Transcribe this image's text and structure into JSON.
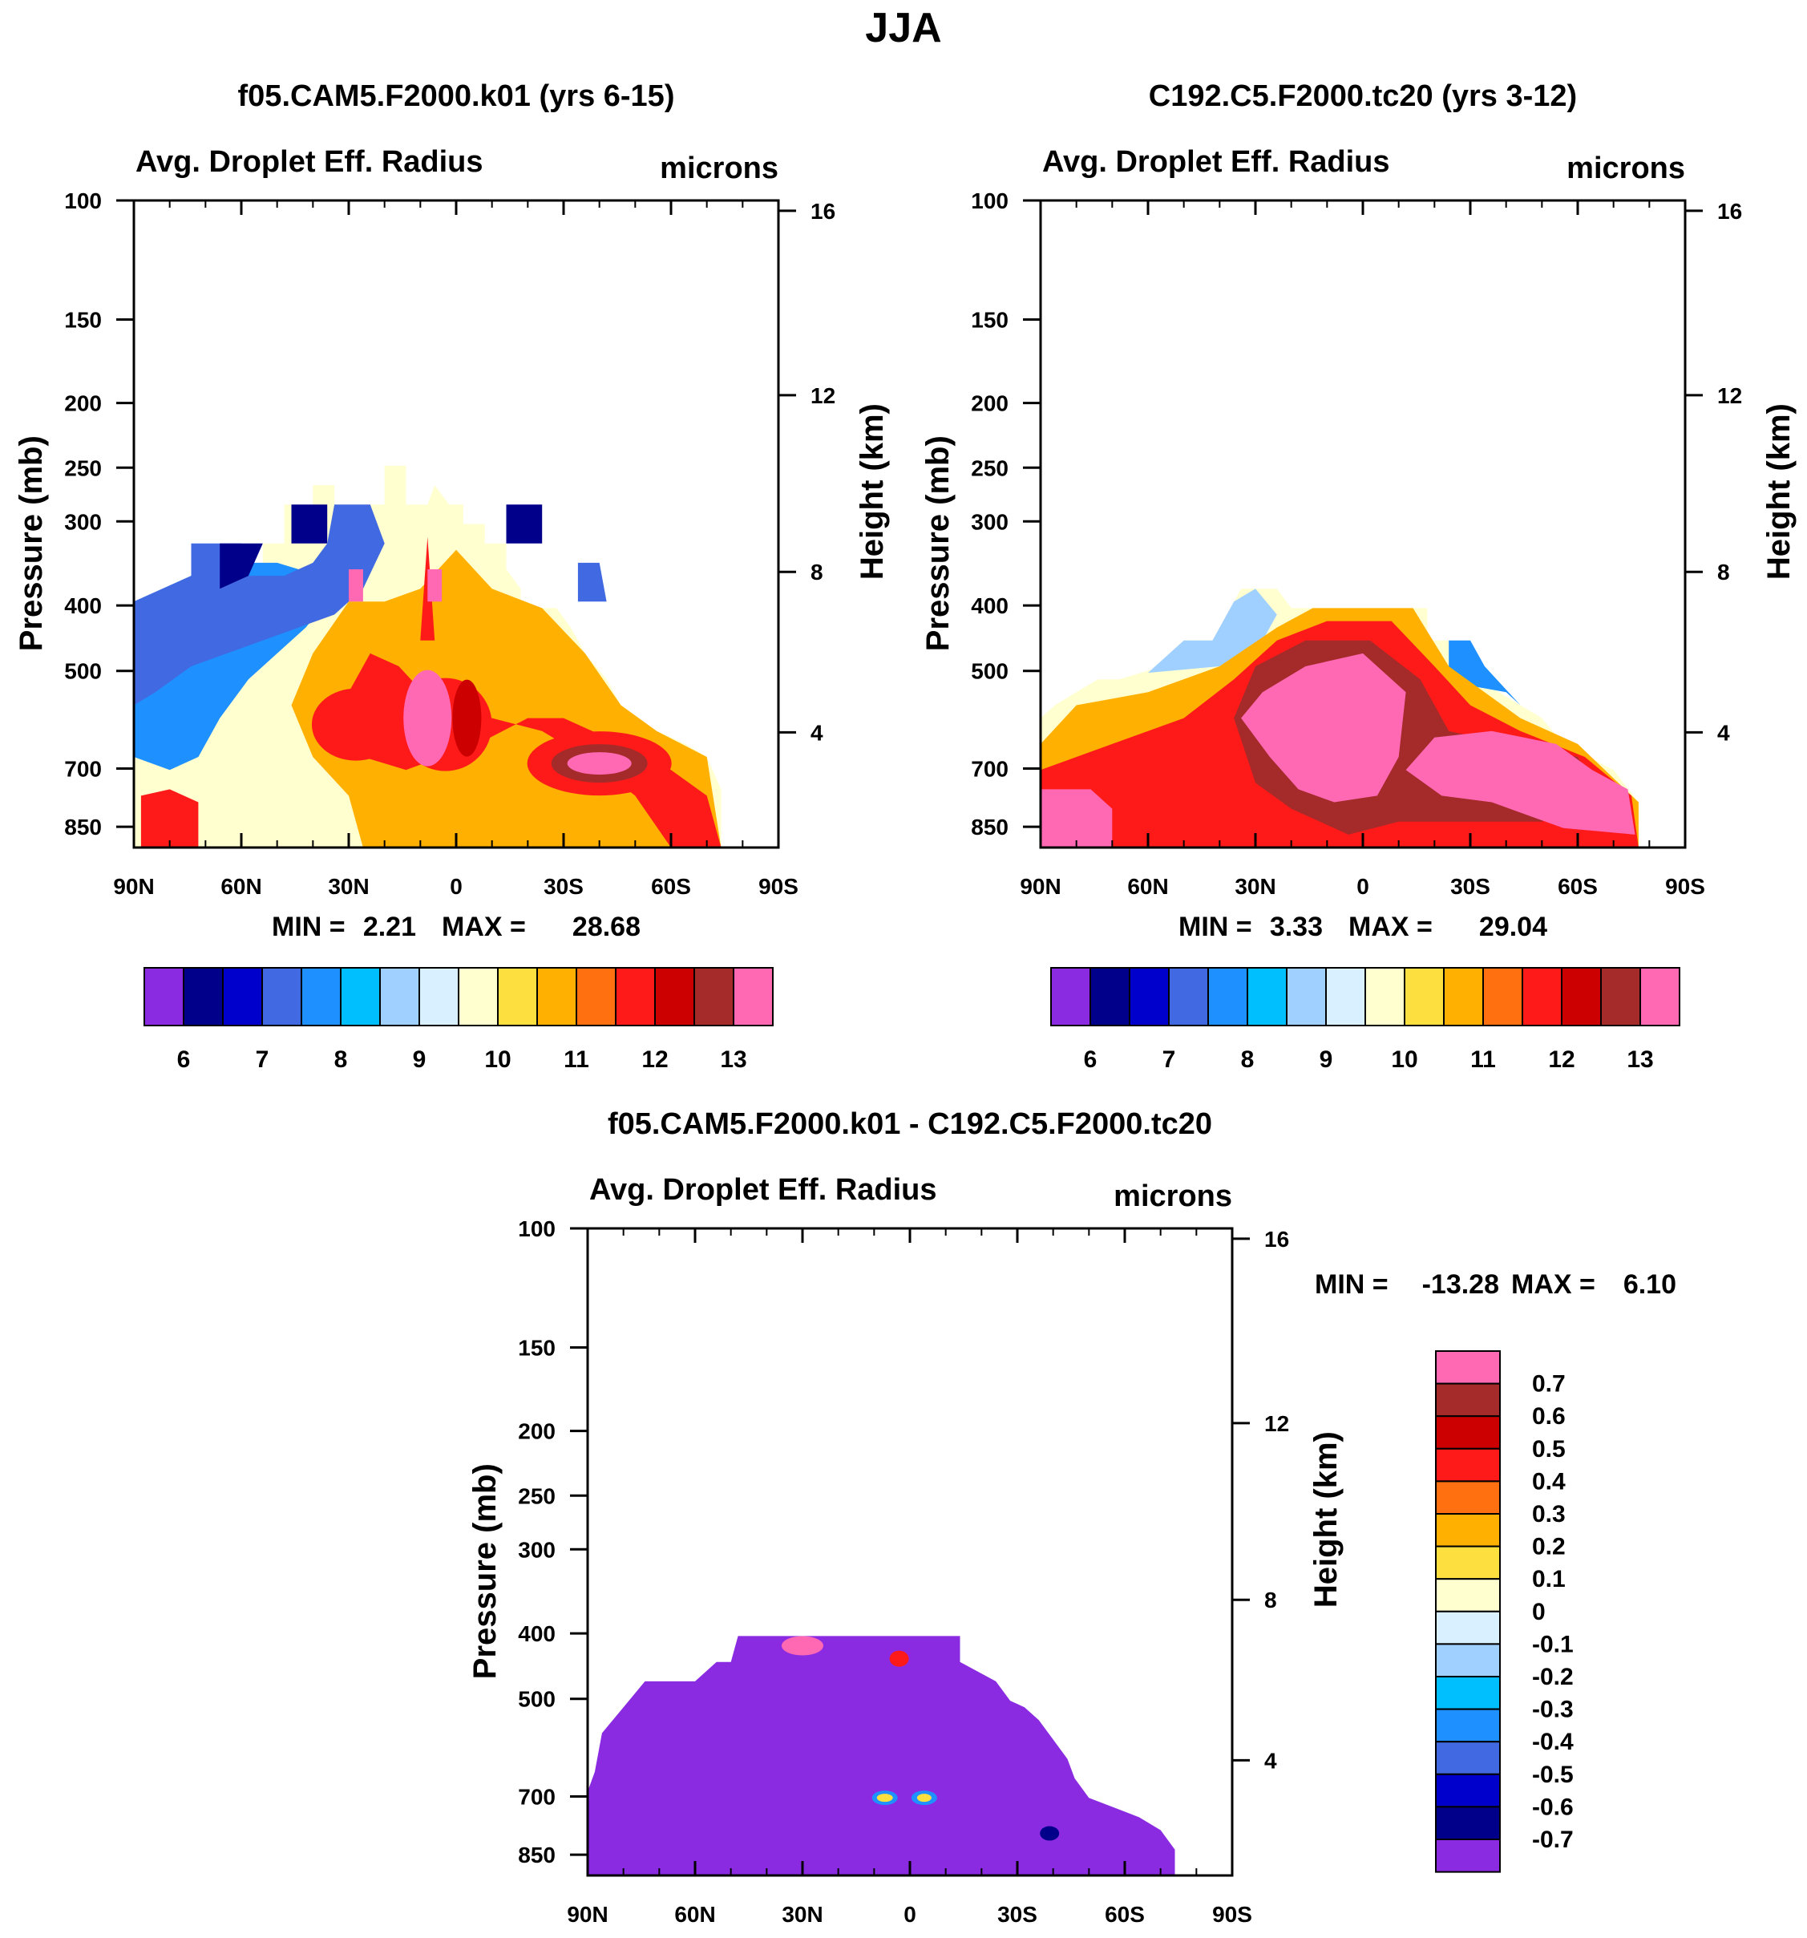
{
  "figure": {
    "title": "JJA"
  },
  "chart_data": [
    {
      "type": "heatmap",
      "title": "f05.CAM5.F2000.k01 (yrs 6-15)",
      "left_label": "Avg. Droplet Eff. Radius",
      "units_label": "microns",
      "xlabel": "",
      "ylabel": "Pressure (mb)",
      "y2label": "Height (km)",
      "x_ticks": [
        "90N",
        "60N",
        "30N",
        "0",
        "30S",
        "60S",
        "90S"
      ],
      "y_ticks": [
        "100",
        "150",
        "200",
        "250",
        "300",
        "400",
        "500",
        "700",
        "850"
      ],
      "y2_ticks": [
        "4",
        "8",
        "12",
        "16"
      ],
      "stats": {
        "min_label": "MIN =",
        "min": "2.21",
        "max_label": "MAX =",
        "max": "28.68"
      },
      "colorbar_labels": [
        "6",
        "7",
        "8",
        "9",
        "10",
        "11",
        "12",
        "13"
      ]
    },
    {
      "type": "heatmap",
      "title": "C192.C5.F2000.tc20 (yrs 3-12)",
      "left_label": "Avg. Droplet Eff. Radius",
      "units_label": "microns",
      "xlabel": "",
      "ylabel": "Pressure (mb)",
      "y2label": "Height (km)",
      "x_ticks": [
        "90N",
        "60N",
        "30N",
        "0",
        "30S",
        "60S",
        "90S"
      ],
      "y_ticks": [
        "100",
        "150",
        "200",
        "250",
        "300",
        "400",
        "500",
        "700",
        "850"
      ],
      "y2_ticks": [
        "4",
        "8",
        "12",
        "16"
      ],
      "stats": {
        "min_label": "MIN =",
        "min": "3.33",
        "max_label": "MAX =",
        "max": "29.04"
      },
      "colorbar_labels": [
        "6",
        "7",
        "8",
        "9",
        "10",
        "11",
        "12",
        "13"
      ]
    },
    {
      "type": "heatmap",
      "title": "f05.CAM5.F2000.k01 - C192.C5.F2000.tc20",
      "left_label": "Avg. Droplet Eff. Radius",
      "units_label": "microns",
      "xlabel": "",
      "ylabel": "Pressure (mb)",
      "y2label": "Height (km)",
      "x_ticks": [
        "90N",
        "60N",
        "30N",
        "0",
        "30S",
        "60S",
        "90S"
      ],
      "y_ticks": [
        "100",
        "150",
        "200",
        "250",
        "300",
        "400",
        "500",
        "700",
        "850"
      ],
      "y2_ticks": [
        "4",
        "8",
        "12",
        "16"
      ],
      "stats": {
        "min_label": "MIN =",
        "min": "-13.28",
        "max_label": "MAX =",
        "max": "6.10"
      },
      "colorbar_labels": [
        "0.7",
        "0.6",
        "0.5",
        "0.4",
        "0.3",
        "0.2",
        "0.1",
        "0",
        "-0.1",
        "-0.2",
        "-0.3",
        "-0.4",
        "-0.5",
        "-0.6",
        "-0.7"
      ]
    }
  ],
  "palette": {
    "levels": [
      "#8a2be2",
      "#00008b",
      "#0000cd",
      "#4169e1",
      "#1e90ff",
      "#00bfff",
      "#a0d0ff",
      "#d8f0ff",
      "#ffffd0",
      "#fde040",
      "#ffb000",
      "#ff7010",
      "#ff1a1a",
      "#cc0000",
      "#a52a2a",
      "#ff69b4"
    ]
  }
}
